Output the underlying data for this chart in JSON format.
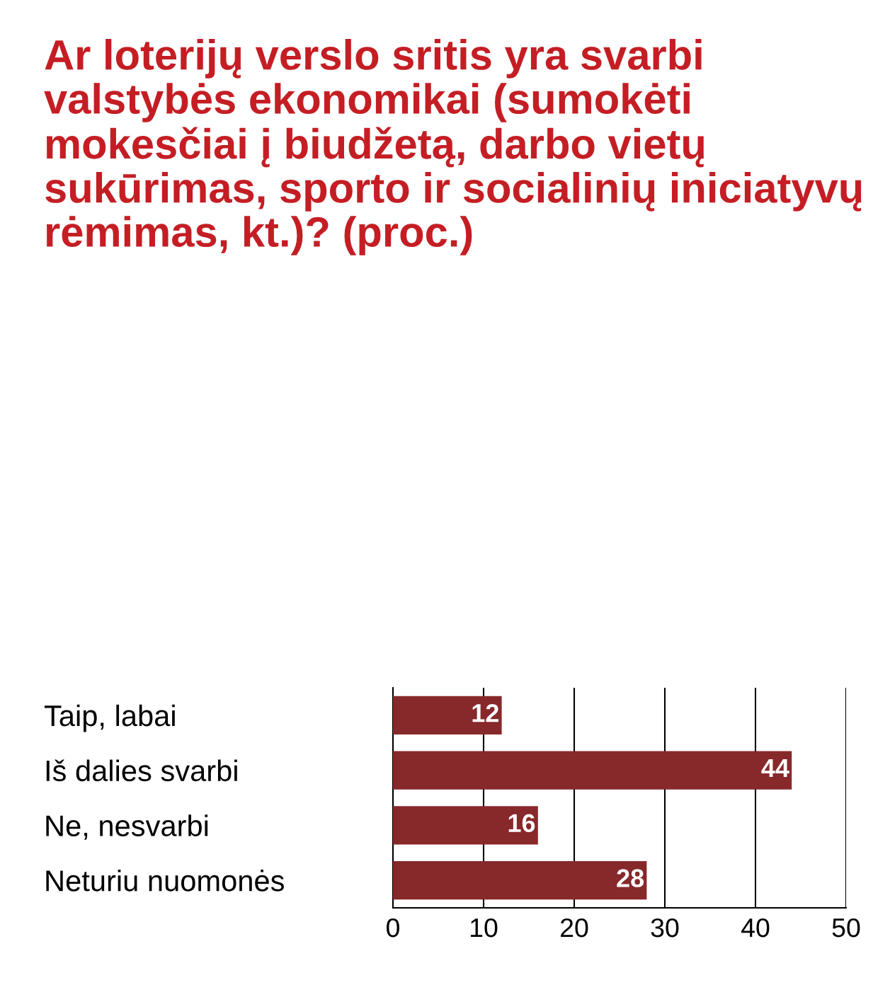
{
  "chart_data": {
    "type": "bar",
    "orientation": "horizontal",
    "title": "Ar loterijų verslo sritis yra svarbi valstybės ekonomikai (sumokėti mokesčiai į biudžetą, darbo vietų sukūrimas, sporto ir socialinių iniciatyvų rėmimas, kt.)? (proc.)",
    "categories": [
      "Taip, labai",
      "Iš dalies svarbi",
      "Ne, nesvarbi",
      "Neturiu nuomonės"
    ],
    "values": [
      12,
      44,
      16,
      28
    ],
    "color": "#87282b",
    "xlim": [
      0,
      50
    ],
    "xticks": [
      0,
      10,
      20,
      30,
      40,
      50
    ],
    "grid": "x",
    "data_labels": true
  }
}
